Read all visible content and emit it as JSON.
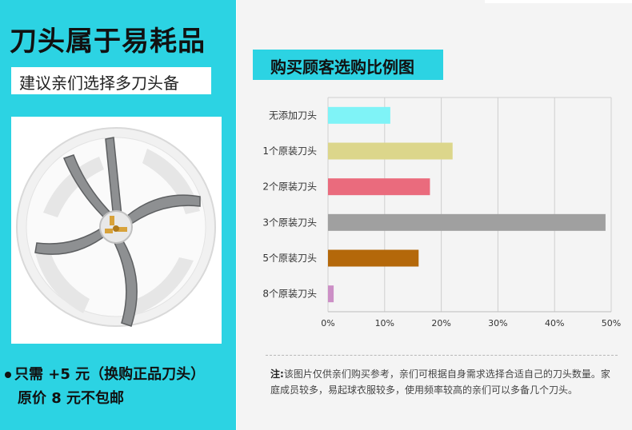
{
  "headline": "刀头属于易耗品",
  "subtitle": "建议亲们选择多刀头备",
  "promo": {
    "line1": "只需 +5 元（换购正品刀头）",
    "line2": "原价 8 元不包邮"
  },
  "colors": {
    "accent": "#2cd3e3"
  },
  "chart_data": {
    "type": "bar",
    "orientation": "horizontal",
    "title": "购买顾客选购比例图",
    "categories": [
      "无添加刀头",
      "1个原装刀头",
      "2个原装刀头",
      "3个原装刀头",
      "5个原装刀头",
      "8个原装刀头"
    ],
    "values": [
      11,
      22,
      18,
      49,
      16,
      1
    ],
    "colors": [
      "#7ff3f7",
      "#dcd68b",
      "#ea6b7d",
      "#a0a0a0",
      "#b4680a",
      "#cc8fc6"
    ],
    "xlim": [
      0,
      50
    ],
    "xticks": [
      "0%",
      "10%",
      "20%",
      "30%",
      "40%",
      "50%"
    ],
    "grid": "vertical"
  },
  "note": {
    "lead": "注:",
    "text": "该图片仅供亲们购买参考，亲们可根据自身需求选择合适自己的刀头数量。家庭成员较多，易起球衣服较多，使用频率较高的亲们可以多备几个刀头。"
  }
}
